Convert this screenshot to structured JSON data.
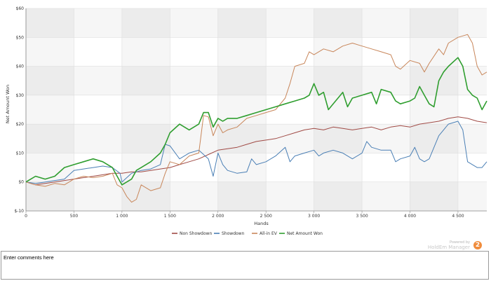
{
  "chart_data": {
    "type": "line",
    "title": "",
    "xlabel": "Hands",
    "ylabel": "Net Amount Won",
    "xlim": [
      0,
      4800
    ],
    "ylim": [
      -10,
      60
    ],
    "x_ticks": [
      0,
      500,
      1000,
      1500,
      2000,
      2500,
      3000,
      3500,
      4000,
      4500
    ],
    "x_tick_labels": [
      "0",
      "500",
      "1 000",
      "1 500",
      "2 000",
      "2 500",
      "3 000",
      "3 500",
      "4 000",
      "4 500"
    ],
    "y_ticks": [
      -10,
      0,
      10,
      20,
      30,
      40,
      50,
      60
    ],
    "y_tick_labels": [
      "$-10",
      "$0",
      "$10",
      "$20",
      "$30",
      "$40",
      "$50",
      "$60"
    ],
    "grid": true,
    "legend_position": "bottom-center",
    "series": [
      {
        "name": "Non Showdown",
        "color": "#a04a45",
        "points": [
          [
            0,
            0
          ],
          [
            100,
            -1
          ],
          [
            200,
            -0.5
          ],
          [
            300,
            0
          ],
          [
            400,
            0.5
          ],
          [
            500,
            1
          ],
          [
            600,
            1.5
          ],
          [
            700,
            2
          ],
          [
            800,
            2.5
          ],
          [
            900,
            3
          ],
          [
            1000,
            3
          ],
          [
            1100,
            3.5
          ],
          [
            1200,
            3.5
          ],
          [
            1300,
            4
          ],
          [
            1400,
            4.5
          ],
          [
            1500,
            5
          ],
          [
            1600,
            6
          ],
          [
            1700,
            7
          ],
          [
            1800,
            8
          ],
          [
            1900,
            9.5
          ],
          [
            2000,
            11
          ],
          [
            2100,
            11.5
          ],
          [
            2200,
            12
          ],
          [
            2300,
            13
          ],
          [
            2400,
            14
          ],
          [
            2500,
            14.5
          ],
          [
            2600,
            15
          ],
          [
            2700,
            16
          ],
          [
            2800,
            17
          ],
          [
            2900,
            18
          ],
          [
            3000,
            18.5
          ],
          [
            3100,
            18
          ],
          [
            3200,
            19
          ],
          [
            3300,
            18.5
          ],
          [
            3400,
            18
          ],
          [
            3500,
            18.5
          ],
          [
            3600,
            19
          ],
          [
            3700,
            18
          ],
          [
            3800,
            19
          ],
          [
            3900,
            19.5
          ],
          [
            4000,
            19
          ],
          [
            4100,
            20
          ],
          [
            4200,
            20.5
          ],
          [
            4300,
            21
          ],
          [
            4400,
            22
          ],
          [
            4500,
            22.5
          ],
          [
            4600,
            22
          ],
          [
            4700,
            21
          ],
          [
            4800,
            20.5
          ]
        ]
      },
      {
        "name": "Showdown",
        "color": "#4a7fb5",
        "points": [
          [
            0,
            0
          ],
          [
            100,
            -0.5
          ],
          [
            200,
            0
          ],
          [
            300,
            0.5
          ],
          [
            400,
            1
          ],
          [
            500,
            4
          ],
          [
            600,
            4.5
          ],
          [
            700,
            5
          ],
          [
            800,
            5.5
          ],
          [
            900,
            5
          ],
          [
            980,
            3
          ],
          [
            1000,
            0
          ],
          [
            1100,
            3
          ],
          [
            1200,
            4
          ],
          [
            1300,
            4.5
          ],
          [
            1400,
            6
          ],
          [
            1450,
            13
          ],
          [
            1500,
            12.5
          ],
          [
            1600,
            8
          ],
          [
            1700,
            10
          ],
          [
            1800,
            11
          ],
          [
            1900,
            8
          ],
          [
            1950,
            2
          ],
          [
            2000,
            10
          ],
          [
            2050,
            6
          ],
          [
            2100,
            4
          ],
          [
            2200,
            3
          ],
          [
            2300,
            3.5
          ],
          [
            2350,
            8
          ],
          [
            2400,
            6
          ],
          [
            2500,
            7
          ],
          [
            2600,
            9
          ],
          [
            2700,
            12
          ],
          [
            2750,
            7
          ],
          [
            2800,
            9
          ],
          [
            2900,
            10
          ],
          [
            3000,
            11
          ],
          [
            3050,
            9
          ],
          [
            3100,
            10
          ],
          [
            3200,
            11
          ],
          [
            3300,
            10
          ],
          [
            3400,
            8
          ],
          [
            3500,
            10
          ],
          [
            3550,
            14
          ],
          [
            3600,
            12
          ],
          [
            3700,
            11
          ],
          [
            3800,
            11
          ],
          [
            3850,
            7
          ],
          [
            3900,
            8
          ],
          [
            4000,
            9
          ],
          [
            4050,
            12
          ],
          [
            4100,
            8
          ],
          [
            4150,
            7
          ],
          [
            4200,
            8
          ],
          [
            4300,
            16
          ],
          [
            4350,
            18
          ],
          [
            4400,
            20
          ],
          [
            4500,
            21
          ],
          [
            4550,
            18
          ],
          [
            4600,
            7
          ],
          [
            4700,
            5
          ],
          [
            4750,
            5
          ],
          [
            4800,
            7
          ]
        ]
      },
      {
        "name": "All-in EV",
        "color": "#c8865a",
        "points": [
          [
            0,
            0
          ],
          [
            100,
            -1
          ],
          [
            200,
            -1.5
          ],
          [
            300,
            -0.5
          ],
          [
            400,
            -1
          ],
          [
            500,
            1
          ],
          [
            600,
            2
          ],
          [
            700,
            1.5
          ],
          [
            800,
            2
          ],
          [
            900,
            3
          ],
          [
            950,
            -1
          ],
          [
            1000,
            -2
          ],
          [
            1050,
            -5
          ],
          [
            1100,
            -7
          ],
          [
            1150,
            -6
          ],
          [
            1200,
            -1
          ],
          [
            1300,
            -3
          ],
          [
            1400,
            -2
          ],
          [
            1450,
            3
          ],
          [
            1500,
            7
          ],
          [
            1600,
            6
          ],
          [
            1700,
            9
          ],
          [
            1800,
            10
          ],
          [
            1850,
            23
          ],
          [
            1900,
            22.5
          ],
          [
            1950,
            16
          ],
          [
            2000,
            20
          ],
          [
            2050,
            17
          ],
          [
            2100,
            18
          ],
          [
            2200,
            19
          ],
          [
            2300,
            22
          ],
          [
            2400,
            23
          ],
          [
            2500,
            24
          ],
          [
            2600,
            25
          ],
          [
            2700,
            29
          ],
          [
            2750,
            34
          ],
          [
            2800,
            40
          ],
          [
            2900,
            41
          ],
          [
            2950,
            45
          ],
          [
            3000,
            44
          ],
          [
            3100,
            46
          ],
          [
            3200,
            45
          ],
          [
            3300,
            47
          ],
          [
            3400,
            48
          ],
          [
            3500,
            47
          ],
          [
            3600,
            46
          ],
          [
            3700,
            45
          ],
          [
            3800,
            44
          ],
          [
            3850,
            40
          ],
          [
            3900,
            39
          ],
          [
            4000,
            42
          ],
          [
            4100,
            41
          ],
          [
            4150,
            38
          ],
          [
            4200,
            41
          ],
          [
            4300,
            46
          ],
          [
            4350,
            44
          ],
          [
            4400,
            48
          ],
          [
            4500,
            50
          ],
          [
            4600,
            51
          ],
          [
            4650,
            48
          ],
          [
            4700,
            40
          ],
          [
            4750,
            37
          ],
          [
            4800,
            38
          ]
        ]
      },
      {
        "name": "Net Amount Won",
        "color": "#2f9e2f",
        "points": [
          [
            0,
            0
          ],
          [
            100,
            2
          ],
          [
            200,
            1
          ],
          [
            300,
            2
          ],
          [
            400,
            5
          ],
          [
            500,
            6
          ],
          [
            600,
            7
          ],
          [
            700,
            8
          ],
          [
            800,
            7
          ],
          [
            900,
            5
          ],
          [
            950,
            2
          ],
          [
            1000,
            -1
          ],
          [
            1050,
            0
          ],
          [
            1100,
            1
          ],
          [
            1150,
            4
          ],
          [
            1200,
            5
          ],
          [
            1300,
            7
          ],
          [
            1400,
            10
          ],
          [
            1450,
            13
          ],
          [
            1500,
            17
          ],
          [
            1600,
            20
          ],
          [
            1700,
            18
          ],
          [
            1800,
            20
          ],
          [
            1850,
            24
          ],
          [
            1900,
            24
          ],
          [
            1950,
            19
          ],
          [
            2000,
            22
          ],
          [
            2050,
            21
          ],
          [
            2100,
            22
          ],
          [
            2200,
            22
          ],
          [
            2300,
            23
          ],
          [
            2400,
            24
          ],
          [
            2500,
            25
          ],
          [
            2600,
            26
          ],
          [
            2700,
            27
          ],
          [
            2800,
            28
          ],
          [
            2900,
            29
          ],
          [
            2950,
            30
          ],
          [
            3000,
            34
          ],
          [
            3050,
            30
          ],
          [
            3100,
            31
          ],
          [
            3150,
            25
          ],
          [
            3200,
            27
          ],
          [
            3300,
            31
          ],
          [
            3350,
            26
          ],
          [
            3400,
            29
          ],
          [
            3500,
            30
          ],
          [
            3600,
            31
          ],
          [
            3650,
            27
          ],
          [
            3700,
            32
          ],
          [
            3800,
            31
          ],
          [
            3850,
            28
          ],
          [
            3900,
            27
          ],
          [
            4000,
            28
          ],
          [
            4050,
            29
          ],
          [
            4100,
            33
          ],
          [
            4150,
            30
          ],
          [
            4200,
            27
          ],
          [
            4250,
            26
          ],
          [
            4300,
            35
          ],
          [
            4350,
            38
          ],
          [
            4400,
            40
          ],
          [
            4500,
            43
          ],
          [
            4550,
            40
          ],
          [
            4600,
            32
          ],
          [
            4650,
            30
          ],
          [
            4700,
            29
          ],
          [
            4750,
            25
          ],
          [
            4800,
            28
          ]
        ]
      }
    ]
  },
  "legend": {
    "items": [
      {
        "label": "Non Showdown",
        "color": "#a04a45"
      },
      {
        "label": "Showdown",
        "color": "#4a7fb5"
      },
      {
        "label": "All-in EV",
        "color": "#c8865a"
      },
      {
        "label": "Net Amount Won",
        "color": "#2f9e2f"
      }
    ]
  },
  "footer": {
    "powered_by": "Powered by",
    "brand": "HoldEm Manager",
    "logo_glyph": "2"
  },
  "comments": {
    "text": "Enter comments here"
  }
}
